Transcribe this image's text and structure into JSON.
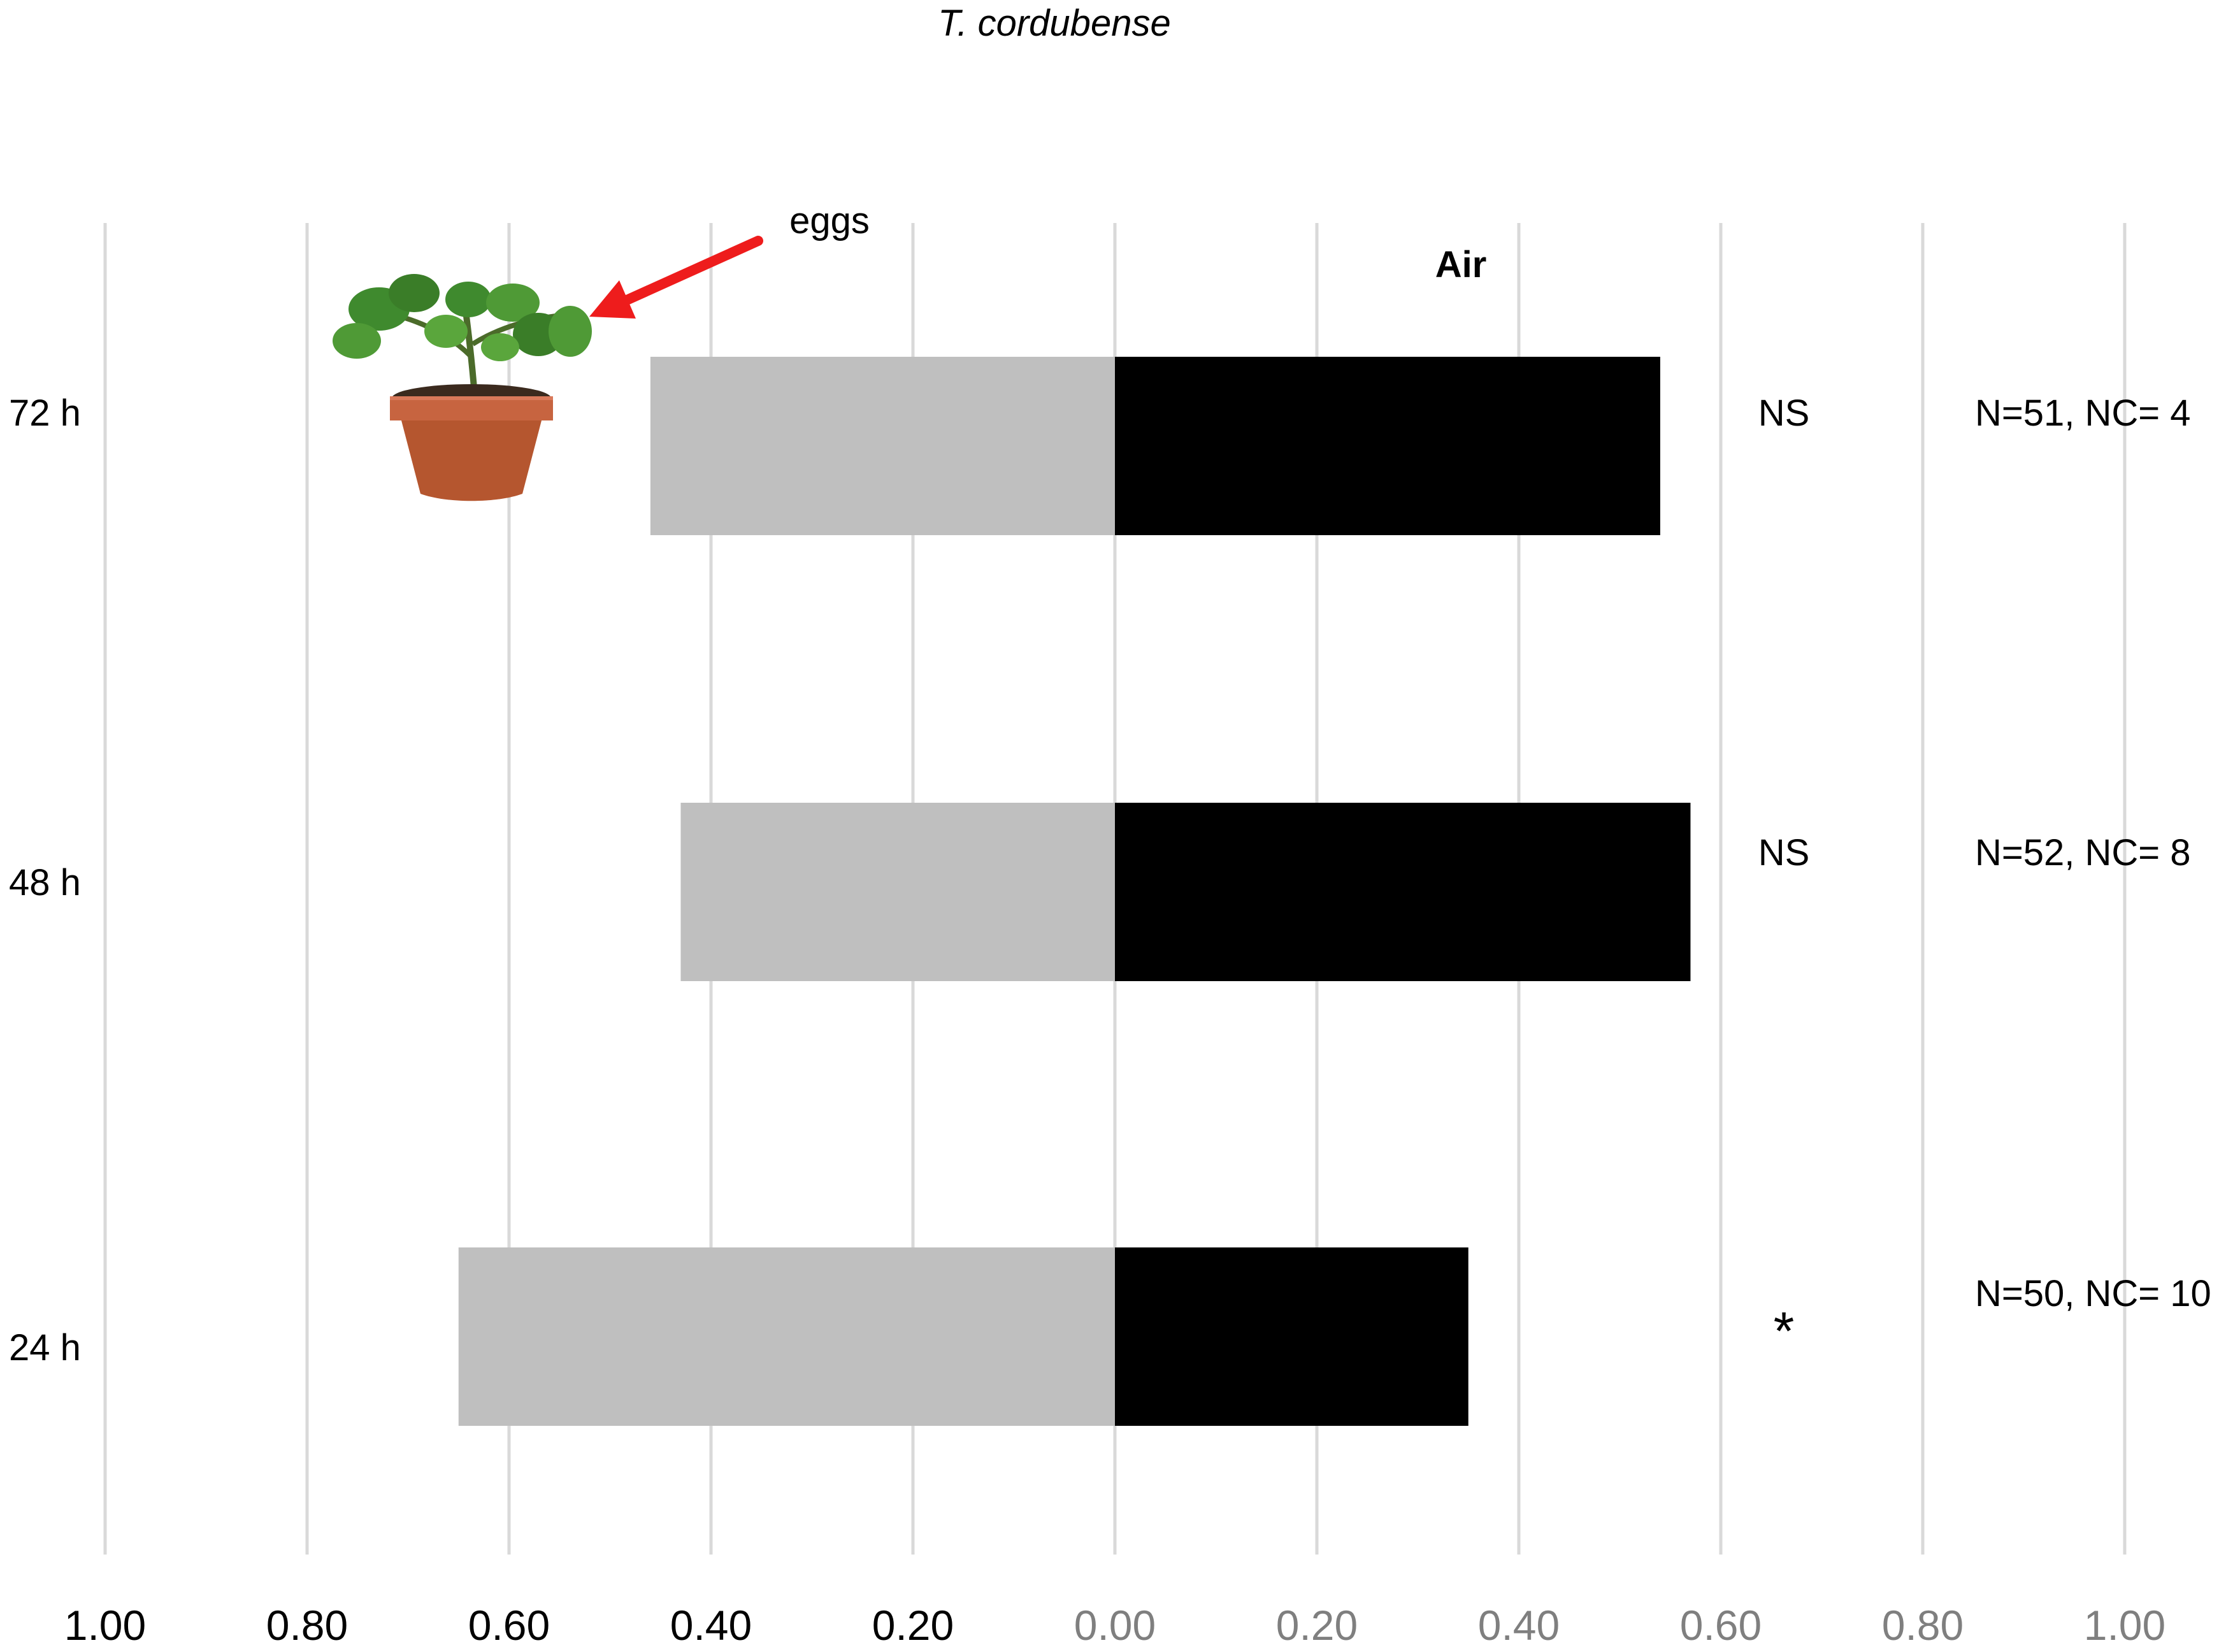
{
  "chart_data": {
    "type": "bar",
    "orientation": "horizontal-diverging",
    "title": "T. cordubense",
    "categories": [
      "72 h",
      "48 h",
      "24 h"
    ],
    "series": [
      {
        "values": [
          0.46,
          0.43,
          0.65
        ],
        "color": "#bfbfbf",
        "side": "left"
      },
      {
        "values": [
          0.54,
          0.57,
          0.35
        ],
        "name": "Air",
        "color": "#000000",
        "side": "right"
      }
    ],
    "significance": [
      "NS",
      "NS",
      "*"
    ],
    "sample_sizes": [
      "N=51, NC= 4",
      "N=52, NC= 8",
      "N=50, NC= 10"
    ],
    "xlim": [
      -1.0,
      1.0
    ],
    "x_ticks_left": [
      "1.00",
      "0.80",
      "0.60",
      "0.40",
      "0.20"
    ],
    "x_ticks_right": [
      "0.00",
      "0.20",
      "0.40",
      "0.60",
      "0.80",
      "1.00"
    ],
    "grid": true,
    "annotation": {
      "text": "eggs",
      "arrow_color": "#ee1c1c",
      "icon": "potted-tomato-plant-icon"
    }
  }
}
